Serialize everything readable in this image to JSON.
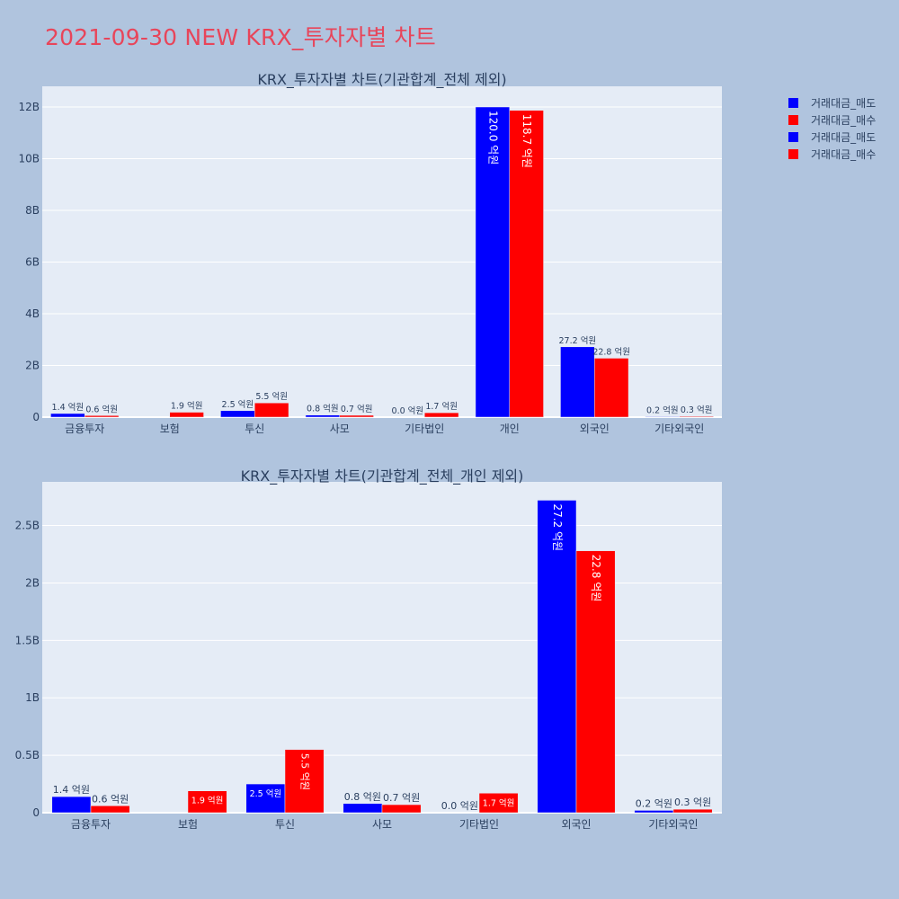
{
  "page": {
    "title": "2021-09-30 NEW KRX_투자자별 차트",
    "background": "#b0c4de",
    "title_color": "#e8455a"
  },
  "legend": {
    "items": [
      {
        "label": "거래대금_매도",
        "color": "#0000ff"
      },
      {
        "label": "거래대금_매수",
        "color": "#ff0000"
      },
      {
        "label": "거래대금_매도",
        "color": "#0000ff"
      },
      {
        "label": "거래대금_매수",
        "color": "#ff0000"
      }
    ]
  },
  "chart_data": [
    {
      "type": "bar",
      "title": "KRX_투자자별 차트(기관합계_전체 제외)",
      "categories": [
        "금융투자",
        "보험",
        "투신",
        "사모",
        "기타법인",
        "개인",
        "외국인",
        "기타외국인"
      ],
      "series": [
        {
          "name": "거래대금_매도",
          "color": "#0000ff",
          "values": [
            140000000,
            0,
            250000000,
            80000000,
            0,
            12000000000,
            2720000000,
            20000000
          ],
          "labels": [
            "1.4 억원",
            "",
            "2.5 억원",
            "0.8 억원",
            "0.0 억원",
            "120.0 억원",
            "27.2 억원",
            "0.2 억원"
          ]
        },
        {
          "name": "거래대금_매수",
          "color": "#ff0000",
          "values": [
            60000000,
            190000000,
            550000000,
            70000000,
            170000000,
            11870000000,
            2280000000,
            30000000
          ],
          "labels": [
            "0.6 억원",
            "1.9 억원",
            "5.5 억원",
            "0.7 억원",
            "1.7 억원",
            "118.7 억원",
            "22.8 억원",
            "0.3 억원"
          ]
        }
      ],
      "yticks": [
        0,
        2000000000,
        4000000000,
        6000000000,
        8000000000,
        10000000000,
        12000000000
      ],
      "ytick_labels": [
        "0",
        "2B",
        "4B",
        "6B",
        "8B",
        "10B",
        "12B"
      ],
      "ylim": [
        0,
        12800000000
      ],
      "grid": true
    },
    {
      "type": "bar",
      "title": "KRX_투자자별 차트(기관합계_전체_개인 제외)",
      "categories": [
        "금융투자",
        "보험",
        "투신",
        "사모",
        "기타법인",
        "외국인",
        "기타외국인"
      ],
      "series": [
        {
          "name": "거래대금_매도",
          "color": "#0000ff",
          "values": [
            140000000,
            0,
            250000000,
            80000000,
            0,
            2720000000,
            20000000
          ],
          "labels": [
            "1.4 억원",
            "",
            "2.5 억원",
            "0.8 억원",
            "0.0 억원",
            "27.2 억원",
            "0.2 억원"
          ]
        },
        {
          "name": "거래대금_매수",
          "color": "#ff0000",
          "values": [
            60000000,
            190000000,
            550000000,
            70000000,
            170000000,
            2280000000,
            30000000
          ],
          "labels": [
            "0.6 억원",
            "1.9 억원",
            "5.5 억원",
            "0.7 억원",
            "1.7 억원",
            "22.8 억원",
            "0.3 억원"
          ]
        }
      ],
      "yticks": [
        0,
        500000000,
        1000000000,
        1500000000,
        2000000000,
        2500000000
      ],
      "ytick_labels": [
        "0",
        "0.5B",
        "1B",
        "1.5B",
        "2B",
        "2.5B"
      ],
      "ylim": [
        0,
        2880000000
      ],
      "grid": true
    }
  ]
}
